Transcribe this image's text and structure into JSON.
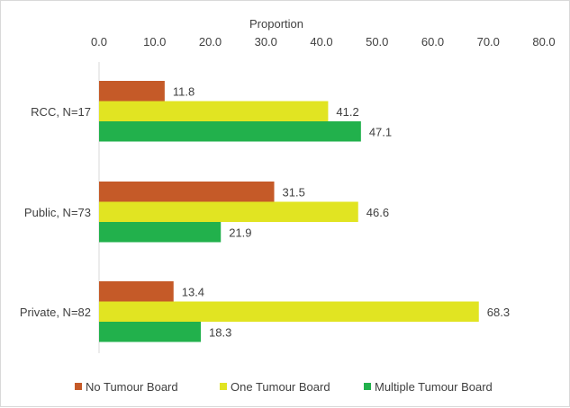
{
  "chart_data": {
    "type": "bar",
    "orientation": "horizontal",
    "title": "",
    "xlabel": "Proportion",
    "ylabel": "",
    "xlim": [
      0,
      80
    ],
    "x_ticks": [
      "0.0",
      "10.0",
      "20.0",
      "30.0",
      "40.0",
      "50.0",
      "60.0",
      "70.0",
      "80.0"
    ],
    "categories": [
      "RCC,  N=17",
      "Public, N=73",
      "Private, N=82"
    ],
    "series": [
      {
        "name": "No Tumour Board",
        "color": "#C55A28",
        "values": [
          11.8,
          31.5,
          13.4
        ],
        "labels": [
          "11.8",
          "31.5",
          "13.4"
        ]
      },
      {
        "name": "One Tumour Board",
        "color": "#E1E422",
        "values": [
          41.2,
          46.6,
          68.3
        ],
        "labels": [
          "41.2",
          "46.6",
          "68.3"
        ]
      },
      {
        "name": "Multiple Tumour Board",
        "color": "#22B14C",
        "values": [
          47.1,
          21.9,
          18.3
        ],
        "labels": [
          "47.1",
          "21.9",
          "18.3"
        ]
      }
    ],
    "legend_position": "bottom",
    "grid": false
  }
}
